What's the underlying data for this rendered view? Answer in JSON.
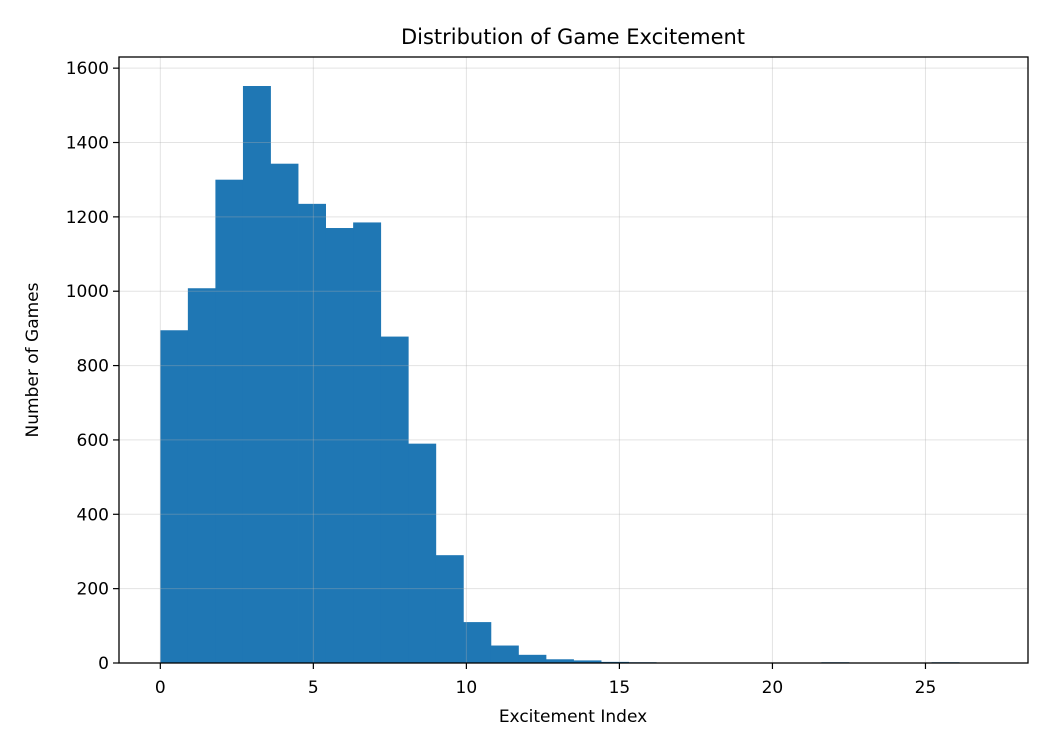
{
  "chart_data": {
    "type": "bar",
    "title": "Distribution of Game Excitement",
    "xlabel": "Excitement Index",
    "ylabel": "Number of Games",
    "xlim": [
      -1.35,
      28.35
    ],
    "ylim": [
      0,
      1630
    ],
    "xticks": [
      0,
      5,
      10,
      15,
      20,
      25
    ],
    "yticks": [
      0,
      200,
      400,
      600,
      800,
      1000,
      1200,
      1400,
      1600
    ],
    "grid": true,
    "bar_color": "#1f77b4",
    "bins": [
      {
        "x0": 0.0,
        "x1": 0.9,
        "count": 895
      },
      {
        "x0": 0.9,
        "x1": 1.8,
        "count": 1008
      },
      {
        "x0": 1.8,
        "x1": 2.7,
        "count": 1300
      },
      {
        "x0": 2.7,
        "x1": 3.6,
        "count": 1552
      },
      {
        "x0": 3.6,
        "x1": 4.5,
        "count": 1343
      },
      {
        "x0": 4.5,
        "x1": 5.4,
        "count": 1235
      },
      {
        "x0": 5.4,
        "x1": 6.3,
        "count": 1170
      },
      {
        "x0": 6.3,
        "x1": 7.2,
        "count": 1185
      },
      {
        "x0": 7.2,
        "x1": 8.1,
        "count": 878
      },
      {
        "x0": 8.1,
        "x1": 9.0,
        "count": 590
      },
      {
        "x0": 9.0,
        "x1": 9.9,
        "count": 290
      },
      {
        "x0": 9.9,
        "x1": 10.8,
        "count": 110
      },
      {
        "x0": 10.8,
        "x1": 11.7,
        "count": 47
      },
      {
        "x0": 11.7,
        "x1": 12.6,
        "count": 22
      },
      {
        "x0": 12.6,
        "x1": 13.5,
        "count": 10
      },
      {
        "x0": 13.5,
        "x1": 14.4,
        "count": 7
      },
      {
        "x0": 14.4,
        "x1": 15.3,
        "count": 3
      },
      {
        "x0": 15.3,
        "x1": 16.2,
        "count": 2
      },
      {
        "x0": 16.2,
        "x1": 17.1,
        "count": 1
      },
      {
        "x0": 17.1,
        "x1": 18.0,
        "count": 1
      },
      {
        "x0": 18.0,
        "x1": 18.9,
        "count": 1
      },
      {
        "x0": 18.9,
        "x1": 19.8,
        "count": 1
      },
      {
        "x0": 19.8,
        "x1": 20.7,
        "count": 1
      },
      {
        "x0": 20.7,
        "x1": 21.6,
        "count": 1
      },
      {
        "x0": 21.6,
        "x1": 22.5,
        "count": 2
      },
      {
        "x0": 22.5,
        "x1": 23.4,
        "count": 1
      },
      {
        "x0": 23.4,
        "x1": 24.3,
        "count": 1
      },
      {
        "x0": 24.3,
        "x1": 25.2,
        "count": 1
      },
      {
        "x0": 25.2,
        "x1": 26.1,
        "count": 2
      },
      {
        "x0": 26.1,
        "x1": 27.0,
        "count": 1
      }
    ]
  }
}
